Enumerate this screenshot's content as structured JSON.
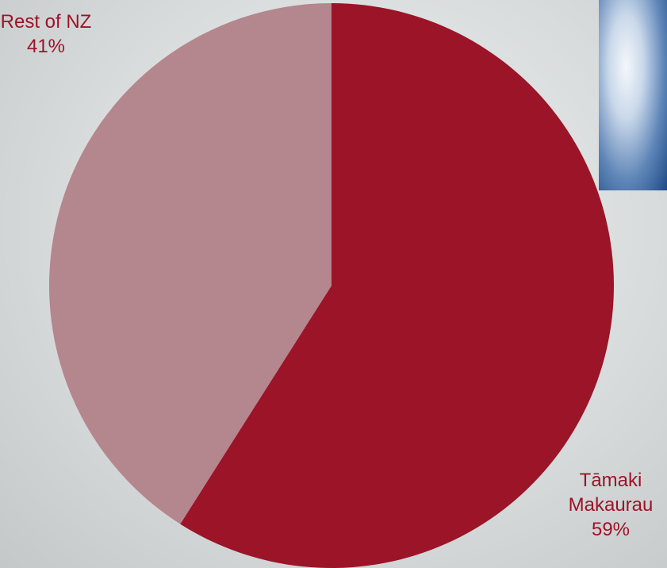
{
  "chart_data": {
    "type": "pie",
    "categories": [
      "Tāmaki Makaurau",
      "Rest of NZ"
    ],
    "values": [
      59,
      41
    ],
    "value_labels": [
      "59%",
      "41%"
    ],
    "colors": [
      "#9b1428",
      "#b4868d"
    ]
  }
}
